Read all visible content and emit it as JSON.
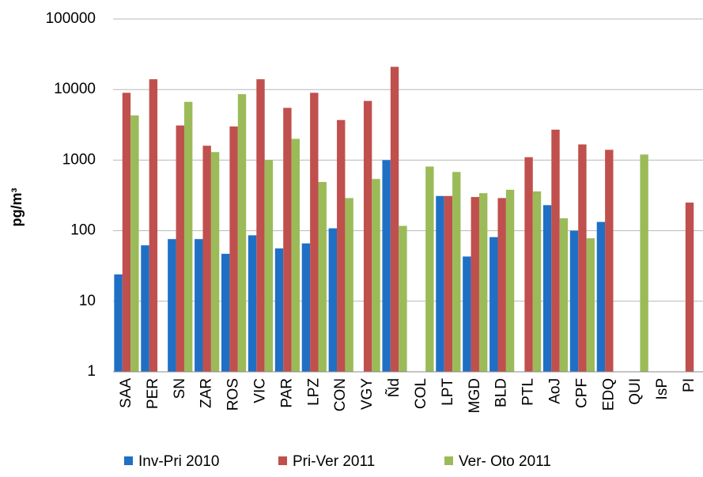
{
  "chart_data": {
    "type": "bar",
    "y_label": "pg/m³",
    "log_scale": true,
    "grid": true,
    "legend_position": "bottom",
    "categories": [
      "SAA",
      "PER",
      "SN",
      "ZAR",
      "ROS",
      "VIC",
      "PAR",
      "LPZ",
      "CON",
      "VGY",
      "Ñd",
      "COL",
      "LPT",
      "MGD",
      "BLD",
      "PTL",
      "AoJ",
      "CPF",
      "EDQ",
      "QUI",
      "IsP",
      "PI"
    ],
    "series": [
      {
        "name": "Inv-Pri 2010",
        "color": "#1f6fc5",
        "values": [
          24,
          62,
          76,
          76,
          47,
          86,
          56,
          66,
          108,
          null,
          1000,
          null,
          310,
          43,
          81,
          null,
          230,
          100,
          133,
          null,
          null,
          null
        ]
      },
      {
        "name": "Pri-Ver 2011",
        "color": "#c0504d",
        "values": [
          9000,
          14000,
          3100,
          1600,
          3000,
          14000,
          5500,
          9000,
          3700,
          6900,
          21000,
          null,
          310,
          300,
          290,
          1100,
          2700,
          1670,
          1400,
          null,
          null,
          250
        ]
      },
      {
        "name": "Ver- Oto 2011",
        "color": "#9bbb59",
        "values": [
          4300,
          null,
          6700,
          1300,
          8600,
          1000,
          2000,
          490,
          290,
          540,
          117,
          810,
          680,
          340,
          380,
          360,
          150,
          78,
          null,
          1200,
          null,
          null
        ]
      }
    ],
    "ylim": [
      1,
      100000
    ],
    "yticks": [
      1,
      10,
      100,
      1000,
      10000,
      100000
    ]
  }
}
